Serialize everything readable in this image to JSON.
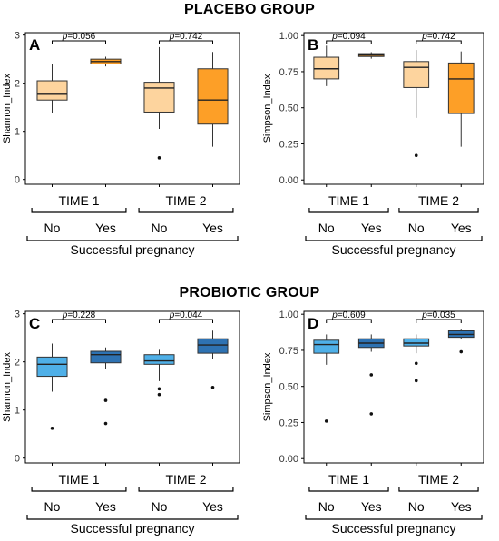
{
  "sections": {
    "placebo_title": "PLACEBO GROUP",
    "probiotic_title": "PROBIOTIC GROUP"
  },
  "colors": {
    "placebo_no": "#fdd49e",
    "placebo_yes": "#fd9f27",
    "probiotic_no": "#4fb0e8",
    "probiotic_yes": "#2e72b2",
    "box_border": "#333333",
    "frame": "#000000"
  },
  "chart_data": [
    {
      "panel": "A",
      "type": "boxplot",
      "ylabel": "Shannon_Index",
      "ylim": [
        -0.1,
        3.05
      ],
      "yticks": [
        0,
        1,
        2,
        3
      ],
      "categories": [
        "No",
        "Yes",
        "No",
        "Yes"
      ],
      "groups": [
        "TIME 1",
        "TIME 2"
      ],
      "xlabel": "Successful pregnancy",
      "pvalues": [
        "p=0.056",
        "p=0.742"
      ],
      "boxes": [
        {
          "time": "TIME 1",
          "group": "No",
          "color": "placebo_no",
          "whisker_low": 1.38,
          "q1": 1.65,
          "median": 1.77,
          "q3": 2.05,
          "whisker_high": 2.4,
          "outliers": []
        },
        {
          "time": "TIME 1",
          "group": "Yes",
          "color": "placebo_yes",
          "whisker_low": 2.35,
          "q1": 2.4,
          "median": 2.45,
          "q3": 2.5,
          "whisker_high": 2.55,
          "outliers": []
        },
        {
          "time": "TIME 2",
          "group": "No",
          "color": "placebo_no",
          "whisker_low": 1.05,
          "q1": 1.4,
          "median": 1.9,
          "q3": 2.02,
          "whisker_high": 2.75,
          "outliers": [
            0.45
          ]
        },
        {
          "time": "TIME 2",
          "group": "Yes",
          "color": "placebo_yes",
          "whisker_low": 0.68,
          "q1": 1.15,
          "median": 1.65,
          "q3": 2.3,
          "whisker_high": 2.65,
          "outliers": []
        }
      ]
    },
    {
      "panel": "B",
      "type": "boxplot",
      "ylabel": "Simpson_Index",
      "ylim": [
        -0.03,
        1.02
      ],
      "yticks": [
        "0.00",
        "0.25",
        "0.50",
        "0.75",
        "1.00"
      ],
      "categories": [
        "No",
        "Yes",
        "No",
        "Yes"
      ],
      "groups": [
        "TIME 1",
        "TIME 2"
      ],
      "xlabel": "Successful pregnancy",
      "pvalues": [
        "p=0.094",
        "p=0.742"
      ],
      "boxes": [
        {
          "time": "TIME 1",
          "group": "No",
          "color": "placebo_no",
          "whisker_low": 0.65,
          "q1": 0.7,
          "median": 0.77,
          "q3": 0.85,
          "whisker_high": 0.93,
          "outliers": []
        },
        {
          "time": "TIME 1",
          "group": "Yes",
          "color": "placebo_yes",
          "whisker_low": 0.84,
          "q1": 0.855,
          "median": 0.865,
          "q3": 0.875,
          "whisker_high": 0.885,
          "outliers": []
        },
        {
          "time": "TIME 2",
          "group": "No",
          "color": "placebo_no",
          "whisker_low": 0.43,
          "q1": 0.64,
          "median": 0.78,
          "q3": 0.82,
          "whisker_high": 0.9,
          "outliers": [
            0.17
          ]
        },
        {
          "time": "TIME 2",
          "group": "Yes",
          "color": "placebo_yes",
          "whisker_low": 0.23,
          "q1": 0.46,
          "median": 0.7,
          "q3": 0.81,
          "whisker_high": 0.89,
          "outliers": []
        }
      ]
    },
    {
      "panel": "C",
      "type": "boxplot",
      "ylabel": "Shannon_Index",
      "ylim": [
        -0.1,
        3.05
      ],
      "yticks": [
        0,
        1,
        2,
        3
      ],
      "categories": [
        "No",
        "Yes",
        "No",
        "Yes"
      ],
      "groups": [
        "TIME 1",
        "TIME 2"
      ],
      "xlabel": "Successful pregnancy",
      "pvalues": [
        "p=0.228",
        "p=0.044"
      ],
      "boxes": [
        {
          "time": "TIME 1",
          "group": "No",
          "color": "probiotic_no",
          "whisker_low": 1.38,
          "q1": 1.7,
          "median": 1.95,
          "q3": 2.1,
          "whisker_high": 2.38,
          "outliers": [
            0.62
          ]
        },
        {
          "time": "TIME 1",
          "group": "Yes",
          "color": "probiotic_yes",
          "whisker_low": 1.85,
          "q1": 1.98,
          "median": 2.15,
          "q3": 2.22,
          "whisker_high": 2.3,
          "outliers": [
            1.2,
            0.72
          ]
        },
        {
          "time": "TIME 2",
          "group": "No",
          "color": "probiotic_no",
          "whisker_low": 1.6,
          "q1": 1.95,
          "median": 2.02,
          "q3": 2.15,
          "whisker_high": 2.25,
          "outliers": [
            1.44,
            1.32
          ]
        },
        {
          "time": "TIME 2",
          "group": "Yes",
          "color": "probiotic_yes",
          "whisker_low": 2.05,
          "q1": 2.18,
          "median": 2.35,
          "q3": 2.48,
          "whisker_high": 2.65,
          "outliers": [
            1.47
          ]
        }
      ]
    },
    {
      "panel": "D",
      "type": "boxplot",
      "ylabel": "Simpson_Index",
      "ylim": [
        -0.03,
        1.02
      ],
      "yticks": [
        "0.00",
        "0.25",
        "0.50",
        "0.75",
        "1.00"
      ],
      "categories": [
        "No",
        "Yes",
        "No",
        "Yes"
      ],
      "groups": [
        "TIME 1",
        "TIME 2"
      ],
      "xlabel": "Successful pregnancy",
      "pvalues": [
        "p=0.609",
        "p=0.035"
      ],
      "boxes": [
        {
          "time": "TIME 1",
          "group": "No",
          "color": "probiotic_no",
          "whisker_low": 0.65,
          "q1": 0.73,
          "median": 0.79,
          "q3": 0.82,
          "whisker_high": 0.86,
          "outliers": [
            0.26
          ]
        },
        {
          "time": "TIME 1",
          "group": "Yes",
          "color": "probiotic_yes",
          "whisker_low": 0.74,
          "q1": 0.77,
          "median": 0.8,
          "q3": 0.83,
          "whisker_high": 0.86,
          "outliers": [
            0.58,
            0.31
          ]
        },
        {
          "time": "TIME 2",
          "group": "No",
          "color": "probiotic_no",
          "whisker_low": 0.73,
          "q1": 0.78,
          "median": 0.8,
          "q3": 0.83,
          "whisker_high": 0.86,
          "outliers": [
            0.66,
            0.54
          ]
        },
        {
          "time": "TIME 2",
          "group": "Yes",
          "color": "probiotic_yes",
          "whisker_low": 0.83,
          "q1": 0.84,
          "median": 0.86,
          "q3": 0.885,
          "whisker_high": 0.9,
          "outliers": [
            0.74
          ]
        }
      ]
    }
  ]
}
